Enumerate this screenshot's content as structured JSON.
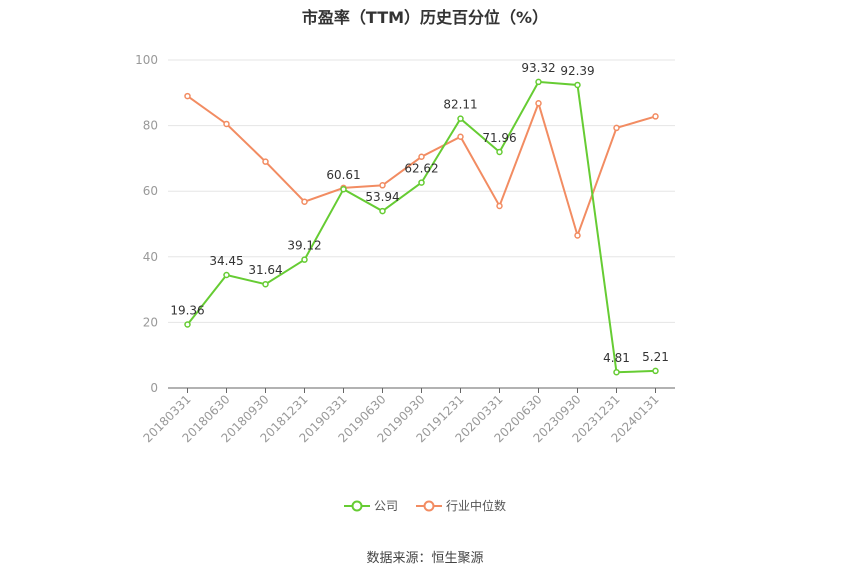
{
  "title": "市盈率（TTM）历史百分位（%）",
  "source": "数据来源：恒生聚源",
  "colors": {
    "company": "#66cc33",
    "industry": "#f28c62",
    "grid": "#e5e5e5",
    "axis": "#666666"
  },
  "chart_data": {
    "type": "line",
    "title": "市盈率（TTM）历史百分位（%）",
    "xlabel": "",
    "ylabel": "",
    "ylim": [
      0,
      100
    ],
    "yticks": [
      0,
      20,
      40,
      60,
      80,
      100
    ],
    "grid": true,
    "legend_position": "bottom",
    "categories": [
      "20180331",
      "20180630",
      "20180930",
      "20181231",
      "20190331",
      "20190630",
      "20190930",
      "20191231",
      "20200331",
      "20200630",
      "20230930",
      "20231231",
      "20240131"
    ],
    "series": [
      {
        "name": "公司",
        "values": [
          19.36,
          34.45,
          31.64,
          39.12,
          60.61,
          53.94,
          62.62,
          82.11,
          71.96,
          93.32,
          92.39,
          4.81,
          5.21
        ],
        "labels": [
          "19.36",
          "34.45",
          "31.64",
          "39.12",
          "60.61",
          "53.94",
          "62.62",
          "82.11",
          "71.96",
          "93.32",
          "92.39",
          "4.81",
          "5.21"
        ]
      },
      {
        "name": "行业中位数",
        "values": [
          89.0,
          80.5,
          69.0,
          56.8,
          61.0,
          61.8,
          70.5,
          76.6,
          55.5,
          86.8,
          46.5,
          79.3,
          82.8
        ]
      }
    ]
  }
}
